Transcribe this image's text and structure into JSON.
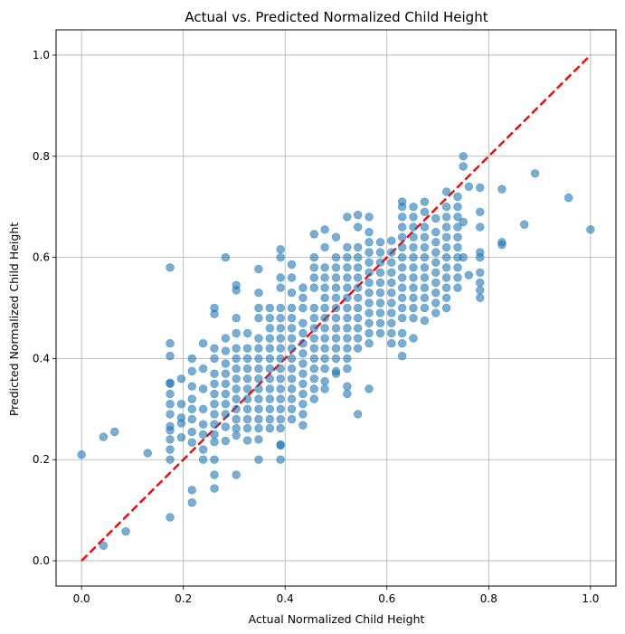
{
  "chart_data": {
    "type": "scatter",
    "title": "Actual vs. Predicted Normalized Child Height",
    "xlabel": "Actual Normalized Child Height",
    "ylabel": "Predicted Normalized Child Height",
    "xlim": [
      -0.05,
      1.05
    ],
    "ylim": [
      -0.05,
      1.05
    ],
    "xticks": [
      "0.0",
      "0.2",
      "0.4",
      "0.6",
      "0.8",
      "1.0"
    ],
    "yticks": [
      "0.0",
      "0.2",
      "0.4",
      "0.6",
      "0.8",
      "1.0"
    ],
    "grid": true,
    "point_color": "#1f77b4",
    "reference_line": {
      "x": [
        0,
        1
      ],
      "y": [
        0,
        1
      ],
      "color": "#ff0000",
      "style": "dashed"
    },
    "x_columns": [
      0.0,
      0.043,
      0.065,
      0.087,
      0.13,
      0.174,
      0.196,
      0.217,
      0.239,
      0.261,
      0.283,
      0.304,
      0.326,
      0.348,
      0.37,
      0.391,
      0.413,
      0.435,
      0.457,
      0.478,
      0.5,
      0.522,
      0.543,
      0.565,
      0.587,
      0.609,
      0.63,
      0.652,
      0.674,
      0.696,
      0.717,
      0.739,
      0.761,
      0.783,
      0.826,
      0.87,
      0.891,
      0.957,
      1.0
    ],
    "points": [
      [
        0.0,
        0.21
      ],
      [
        0.043,
        0.245
      ],
      [
        0.043,
        0.03
      ],
      [
        0.065,
        0.255
      ],
      [
        0.087,
        0.058
      ],
      [
        0.13,
        0.213
      ],
      [
        0.174,
        0.58
      ],
      [
        0.174,
        0.43
      ],
      [
        0.174,
        0.405
      ],
      [
        0.174,
        0.352
      ],
      [
        0.174,
        0.35
      ],
      [
        0.174,
        0.33
      ],
      [
        0.174,
        0.31
      ],
      [
        0.174,
        0.29
      ],
      [
        0.174,
        0.266
      ],
      [
        0.174,
        0.258
      ],
      [
        0.174,
        0.24
      ],
      [
        0.174,
        0.22
      ],
      [
        0.174,
        0.2
      ],
      [
        0.174,
        0.086
      ],
      [
        0.196,
        0.36
      ],
      [
        0.196,
        0.31
      ],
      [
        0.196,
        0.283
      ],
      [
        0.196,
        0.272
      ],
      [
        0.196,
        0.244
      ],
      [
        0.217,
        0.4
      ],
      [
        0.217,
        0.375
      ],
      [
        0.217,
        0.345
      ],
      [
        0.217,
        0.32
      ],
      [
        0.217,
        0.3
      ],
      [
        0.217,
        0.28
      ],
      [
        0.217,
        0.255
      ],
      [
        0.217,
        0.234
      ],
      [
        0.217,
        0.14
      ],
      [
        0.217,
        0.115
      ],
      [
        0.239,
        0.43
      ],
      [
        0.239,
        0.38
      ],
      [
        0.239,
        0.34
      ],
      [
        0.239,
        0.3
      ],
      [
        0.239,
        0.27
      ],
      [
        0.239,
        0.25
      ],
      [
        0.239,
        0.22
      ],
      [
        0.239,
        0.2
      ],
      [
        0.261,
        0.5
      ],
      [
        0.261,
        0.488
      ],
      [
        0.261,
        0.42
      ],
      [
        0.261,
        0.4
      ],
      [
        0.261,
        0.37
      ],
      [
        0.261,
        0.35
      ],
      [
        0.261,
        0.33
      ],
      [
        0.261,
        0.31
      ],
      [
        0.261,
        0.29
      ],
      [
        0.261,
        0.27
      ],
      [
        0.261,
        0.25
      ],
      [
        0.261,
        0.235
      ],
      [
        0.261,
        0.2
      ],
      [
        0.261,
        0.17
      ],
      [
        0.261,
        0.143
      ],
      [
        0.283,
        0.6
      ],
      [
        0.283,
        0.44
      ],
      [
        0.283,
        0.415
      ],
      [
        0.283,
        0.39
      ],
      [
        0.283,
        0.37
      ],
      [
        0.283,
        0.35
      ],
      [
        0.283,
        0.33
      ],
      [
        0.283,
        0.31
      ],
      [
        0.283,
        0.29
      ],
      [
        0.283,
        0.265
      ],
      [
        0.283,
        0.237
      ],
      [
        0.304,
        0.545
      ],
      [
        0.304,
        0.535
      ],
      [
        0.304,
        0.48
      ],
      [
        0.304,
        0.45
      ],
      [
        0.304,
        0.42
      ],
      [
        0.304,
        0.4
      ],
      [
        0.304,
        0.38
      ],
      [
        0.304,
        0.36
      ],
      [
        0.304,
        0.34
      ],
      [
        0.304,
        0.32
      ],
      [
        0.304,
        0.3
      ],
      [
        0.304,
        0.28
      ],
      [
        0.304,
        0.262
      ],
      [
        0.304,
        0.248
      ],
      [
        0.304,
        0.17
      ],
      [
        0.326,
        0.45
      ],
      [
        0.326,
        0.42
      ],
      [
        0.326,
        0.4
      ],
      [
        0.326,
        0.38
      ],
      [
        0.326,
        0.36
      ],
      [
        0.326,
        0.34
      ],
      [
        0.326,
        0.32
      ],
      [
        0.326,
        0.3
      ],
      [
        0.326,
        0.28
      ],
      [
        0.326,
        0.262
      ],
      [
        0.326,
        0.238
      ],
      [
        0.348,
        0.577
      ],
      [
        0.348,
        0.53
      ],
      [
        0.348,
        0.5
      ],
      [
        0.348,
        0.48
      ],
      [
        0.348,
        0.44
      ],
      [
        0.348,
        0.42
      ],
      [
        0.348,
        0.4
      ],
      [
        0.348,
        0.38
      ],
      [
        0.348,
        0.36
      ],
      [
        0.348,
        0.34
      ],
      [
        0.348,
        0.32
      ],
      [
        0.348,
        0.3
      ],
      [
        0.348,
        0.28
      ],
      [
        0.348,
        0.262
      ],
      [
        0.348,
        0.24
      ],
      [
        0.348,
        0.2
      ],
      [
        0.37,
        0.5
      ],
      [
        0.37,
        0.48
      ],
      [
        0.37,
        0.46
      ],
      [
        0.37,
        0.44
      ],
      [
        0.37,
        0.42
      ],
      [
        0.37,
        0.4
      ],
      [
        0.37,
        0.38
      ],
      [
        0.37,
        0.36
      ],
      [
        0.37,
        0.34
      ],
      [
        0.37,
        0.32
      ],
      [
        0.37,
        0.3
      ],
      [
        0.37,
        0.28
      ],
      [
        0.37,
        0.262
      ],
      [
        0.391,
        0.616
      ],
      [
        0.391,
        0.6
      ],
      [
        0.391,
        0.56
      ],
      [
        0.391,
        0.54
      ],
      [
        0.391,
        0.5
      ],
      [
        0.391,
        0.48
      ],
      [
        0.391,
        0.46
      ],
      [
        0.391,
        0.44
      ],
      [
        0.391,
        0.42
      ],
      [
        0.391,
        0.4
      ],
      [
        0.391,
        0.38
      ],
      [
        0.391,
        0.36
      ],
      [
        0.391,
        0.34
      ],
      [
        0.391,
        0.32
      ],
      [
        0.391,
        0.3
      ],
      [
        0.391,
        0.28
      ],
      [
        0.391,
        0.262
      ],
      [
        0.391,
        0.23
      ],
      [
        0.391,
        0.228
      ],
      [
        0.391,
        0.2
      ],
      [
        0.413,
        0.586
      ],
      [
        0.413,
        0.56
      ],
      [
        0.413,
        0.53
      ],
      [
        0.413,
        0.5
      ],
      [
        0.413,
        0.48
      ],
      [
        0.413,
        0.46
      ],
      [
        0.413,
        0.44
      ],
      [
        0.413,
        0.42
      ],
      [
        0.413,
        0.4
      ],
      [
        0.413,
        0.38
      ],
      [
        0.413,
        0.36
      ],
      [
        0.413,
        0.34
      ],
      [
        0.413,
        0.32
      ],
      [
        0.413,
        0.3
      ],
      [
        0.413,
        0.28
      ],
      [
        0.435,
        0.54
      ],
      [
        0.435,
        0.52
      ],
      [
        0.435,
        0.5
      ],
      [
        0.435,
        0.47
      ],
      [
        0.435,
        0.45
      ],
      [
        0.435,
        0.43
      ],
      [
        0.435,
        0.41
      ],
      [
        0.435,
        0.39
      ],
      [
        0.435,
        0.37
      ],
      [
        0.435,
        0.35
      ],
      [
        0.435,
        0.33
      ],
      [
        0.435,
        0.31
      ],
      [
        0.435,
        0.29
      ],
      [
        0.435,
        0.268
      ],
      [
        0.457,
        0.646
      ],
      [
        0.457,
        0.6
      ],
      [
        0.457,
        0.58
      ],
      [
        0.457,
        0.56
      ],
      [
        0.457,
        0.54
      ],
      [
        0.457,
        0.5
      ],
      [
        0.457,
        0.48
      ],
      [
        0.457,
        0.46
      ],
      [
        0.457,
        0.44
      ],
      [
        0.457,
        0.42
      ],
      [
        0.457,
        0.4
      ],
      [
        0.457,
        0.38
      ],
      [
        0.457,
        0.36
      ],
      [
        0.457,
        0.34
      ],
      [
        0.457,
        0.32
      ],
      [
        0.478,
        0.655
      ],
      [
        0.478,
        0.62
      ],
      [
        0.478,
        0.58
      ],
      [
        0.478,
        0.56
      ],
      [
        0.478,
        0.54
      ],
      [
        0.478,
        0.52
      ],
      [
        0.478,
        0.5
      ],
      [
        0.478,
        0.48
      ],
      [
        0.478,
        0.46
      ],
      [
        0.478,
        0.44
      ],
      [
        0.478,
        0.42
      ],
      [
        0.478,
        0.4
      ],
      [
        0.478,
        0.38
      ],
      [
        0.478,
        0.355
      ],
      [
        0.478,
        0.34
      ],
      [
        0.5,
        0.64
      ],
      [
        0.5,
        0.6
      ],
      [
        0.5,
        0.58
      ],
      [
        0.5,
        0.56
      ],
      [
        0.5,
        0.54
      ],
      [
        0.5,
        0.52
      ],
      [
        0.5,
        0.5
      ],
      [
        0.5,
        0.48
      ],
      [
        0.5,
        0.46
      ],
      [
        0.5,
        0.44
      ],
      [
        0.5,
        0.42
      ],
      [
        0.5,
        0.4
      ],
      [
        0.5,
        0.375
      ],
      [
        0.5,
        0.37
      ],
      [
        0.522,
        0.68
      ],
      [
        0.522,
        0.62
      ],
      [
        0.522,
        0.6
      ],
      [
        0.522,
        0.58
      ],
      [
        0.522,
        0.56
      ],
      [
        0.522,
        0.54
      ],
      [
        0.522,
        0.52
      ],
      [
        0.522,
        0.5
      ],
      [
        0.522,
        0.48
      ],
      [
        0.522,
        0.46
      ],
      [
        0.522,
        0.44
      ],
      [
        0.522,
        0.42
      ],
      [
        0.522,
        0.4
      ],
      [
        0.522,
        0.38
      ],
      [
        0.522,
        0.345
      ],
      [
        0.522,
        0.33
      ],
      [
        0.543,
        0.684
      ],
      [
        0.543,
        0.66
      ],
      [
        0.543,
        0.62
      ],
      [
        0.543,
        0.6
      ],
      [
        0.543,
        0.58
      ],
      [
        0.543,
        0.56
      ],
      [
        0.543,
        0.54
      ],
      [
        0.543,
        0.52
      ],
      [
        0.543,
        0.5
      ],
      [
        0.543,
        0.48
      ],
      [
        0.543,
        0.46
      ],
      [
        0.543,
        0.44
      ],
      [
        0.543,
        0.42
      ],
      [
        0.543,
        0.29
      ],
      [
        0.565,
        0.68
      ],
      [
        0.565,
        0.65
      ],
      [
        0.565,
        0.63
      ],
      [
        0.565,
        0.61
      ],
      [
        0.565,
        0.59
      ],
      [
        0.565,
        0.57
      ],
      [
        0.565,
        0.55
      ],
      [
        0.565,
        0.53
      ],
      [
        0.565,
        0.51
      ],
      [
        0.565,
        0.49
      ],
      [
        0.565,
        0.47
      ],
      [
        0.565,
        0.45
      ],
      [
        0.565,
        0.43
      ],
      [
        0.565,
        0.34
      ],
      [
        0.587,
        0.63
      ],
      [
        0.587,
        0.61
      ],
      [
        0.587,
        0.59
      ],
      [
        0.587,
        0.57
      ],
      [
        0.587,
        0.55
      ],
      [
        0.587,
        0.53
      ],
      [
        0.587,
        0.51
      ],
      [
        0.587,
        0.49
      ],
      [
        0.587,
        0.47
      ],
      [
        0.587,
        0.45
      ],
      [
        0.609,
        0.633
      ],
      [
        0.609,
        0.61
      ],
      [
        0.609,
        0.59
      ],
      [
        0.609,
        0.57
      ],
      [
        0.609,
        0.55
      ],
      [
        0.609,
        0.53
      ],
      [
        0.609,
        0.51
      ],
      [
        0.609,
        0.49
      ],
      [
        0.609,
        0.47
      ],
      [
        0.609,
        0.45
      ],
      [
        0.609,
        0.43
      ],
      [
        0.63,
        0.71
      ],
      [
        0.63,
        0.7
      ],
      [
        0.63,
        0.68
      ],
      [
        0.63,
        0.66
      ],
      [
        0.63,
        0.64
      ],
      [
        0.63,
        0.62
      ],
      [
        0.63,
        0.6
      ],
      [
        0.63,
        0.58
      ],
      [
        0.63,
        0.56
      ],
      [
        0.63,
        0.54
      ],
      [
        0.63,
        0.52
      ],
      [
        0.63,
        0.5
      ],
      [
        0.63,
        0.48
      ],
      [
        0.63,
        0.45
      ],
      [
        0.63,
        0.43
      ],
      [
        0.63,
        0.405
      ],
      [
        0.652,
        0.7
      ],
      [
        0.652,
        0.68
      ],
      [
        0.652,
        0.66
      ],
      [
        0.652,
        0.64
      ],
      [
        0.652,
        0.62
      ],
      [
        0.652,
        0.6
      ],
      [
        0.652,
        0.58
      ],
      [
        0.652,
        0.56
      ],
      [
        0.652,
        0.54
      ],
      [
        0.652,
        0.52
      ],
      [
        0.652,
        0.5
      ],
      [
        0.652,
        0.48
      ],
      [
        0.652,
        0.44
      ],
      [
        0.674,
        0.71
      ],
      [
        0.674,
        0.69
      ],
      [
        0.674,
        0.66
      ],
      [
        0.674,
        0.64
      ],
      [
        0.674,
        0.62
      ],
      [
        0.674,
        0.6
      ],
      [
        0.674,
        0.58
      ],
      [
        0.674,
        0.56
      ],
      [
        0.674,
        0.54
      ],
      [
        0.674,
        0.52
      ],
      [
        0.674,
        0.5
      ],
      [
        0.674,
        0.475
      ],
      [
        0.696,
        0.677
      ],
      [
        0.696,
        0.65
      ],
      [
        0.696,
        0.63
      ],
      [
        0.696,
        0.61
      ],
      [
        0.696,
        0.59
      ],
      [
        0.696,
        0.57
      ],
      [
        0.696,
        0.55
      ],
      [
        0.696,
        0.53
      ],
      [
        0.696,
        0.51
      ],
      [
        0.696,
        0.49
      ],
      [
        0.717,
        0.73
      ],
      [
        0.717,
        0.7
      ],
      [
        0.717,
        0.68
      ],
      [
        0.717,
        0.66
      ],
      [
        0.717,
        0.64
      ],
      [
        0.717,
        0.62
      ],
      [
        0.717,
        0.6
      ],
      [
        0.717,
        0.58
      ],
      [
        0.717,
        0.56
      ],
      [
        0.717,
        0.54
      ],
      [
        0.717,
        0.52
      ],
      [
        0.717,
        0.5
      ],
      [
        0.739,
        0.72
      ],
      [
        0.739,
        0.7
      ],
      [
        0.739,
        0.68
      ],
      [
        0.739,
        0.66
      ],
      [
        0.739,
        0.64
      ],
      [
        0.739,
        0.62
      ],
      [
        0.739,
        0.6
      ],
      [
        0.739,
        0.58
      ],
      [
        0.739,
        0.56
      ],
      [
        0.739,
        0.54
      ],
      [
        0.75,
        0.8
      ],
      [
        0.75,
        0.78
      ],
      [
        0.75,
        0.67
      ],
      [
        0.75,
        0.6
      ],
      [
        0.761,
        0.74
      ],
      [
        0.761,
        0.565
      ],
      [
        0.783,
        0.738
      ],
      [
        0.783,
        0.69
      ],
      [
        0.783,
        0.66
      ],
      [
        0.783,
        0.61
      ],
      [
        0.783,
        0.6
      ],
      [
        0.783,
        0.57
      ],
      [
        0.783,
        0.55
      ],
      [
        0.783,
        0.535
      ],
      [
        0.783,
        0.52
      ],
      [
        0.826,
        0.735
      ],
      [
        0.826,
        0.63
      ],
      [
        0.826,
        0.625
      ],
      [
        0.87,
        0.665
      ],
      [
        0.891,
        0.766
      ],
      [
        0.957,
        0.718
      ],
      [
        1.0,
        0.655
      ]
    ]
  }
}
